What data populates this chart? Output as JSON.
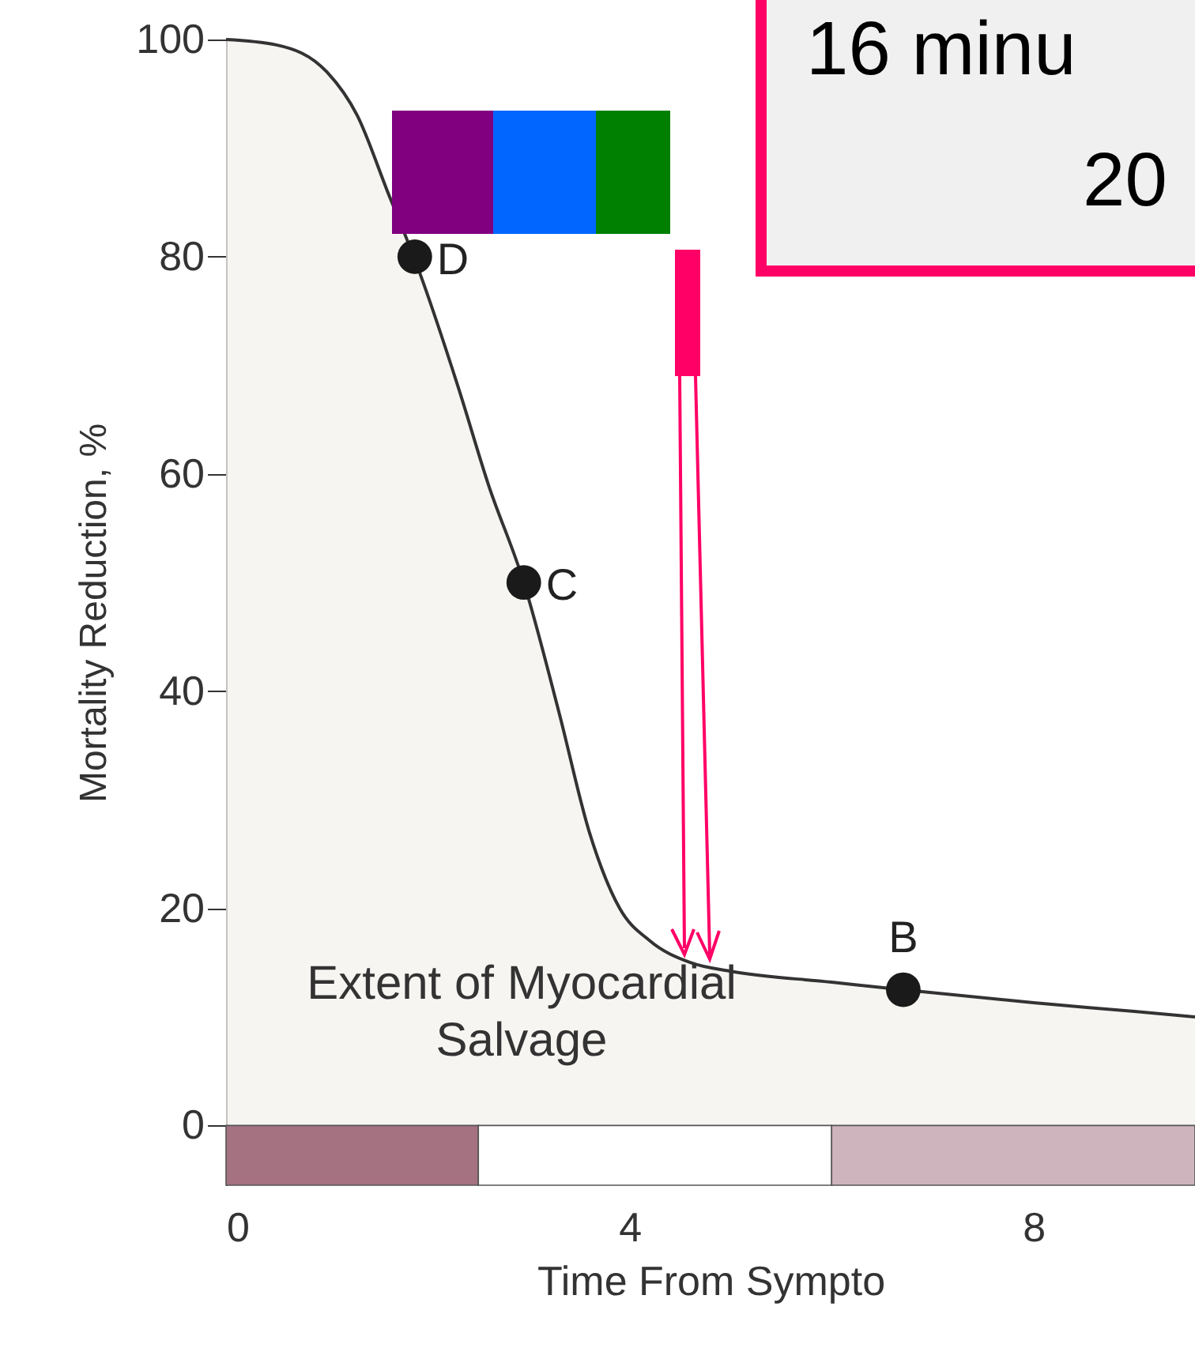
{
  "chart_data": {
    "type": "area",
    "xlabel": "Time From Sympto",
    "ylabel": "Mortality Reduction, %",
    "xlim": [
      0,
      9.6
    ],
    "xticks": [
      0,
      4,
      8
    ],
    "ylim": [
      -5.5,
      100
    ],
    "yticks": [
      0,
      20,
      40,
      60,
      80,
      100
    ],
    "grid": false,
    "series": [
      {
        "color": "#f2f1ed",
        "x": [
          0,
          0.5,
          1,
          1.3,
          1.6,
          1.9,
          2.3,
          2.6,
          2.95,
          3.3,
          3.6,
          3.9,
          4.2,
          4.6,
          5,
          6,
          6.7,
          8,
          9,
          9.6
        ],
        "values": [
          100,
          99.5,
          97,
          93,
          86,
          79,
          68,
          59,
          50,
          38,
          27,
          20,
          17,
          15,
          14.2,
          13.2,
          12.5,
          11.3,
          10.5,
          10
        ]
      },
      {
        "type": "scatter",
        "color": "#1a1a1a",
        "x": [
          1.87,
          2.95,
          6.71
        ],
        "values": [
          80,
          50,
          12.5
        ],
        "value_labels": [
          "D",
          "C",
          "B"
        ]
      }
    ],
    "bands": [
      {
        "axis": "x",
        "from": 0,
        "to": 2.5,
        "color": "#a57282"
      },
      {
        "axis": "x",
        "from": 2.5,
        "to": 6,
        "color": "#ffffff"
      },
      {
        "axis": "x",
        "from": 6,
        "to": 9.6,
        "color": "#ceb4bc"
      }
    ],
    "annotations": [
      "16 minu",
      "20",
      "Extent of Myocardial Salvage"
    ]
  }
}
